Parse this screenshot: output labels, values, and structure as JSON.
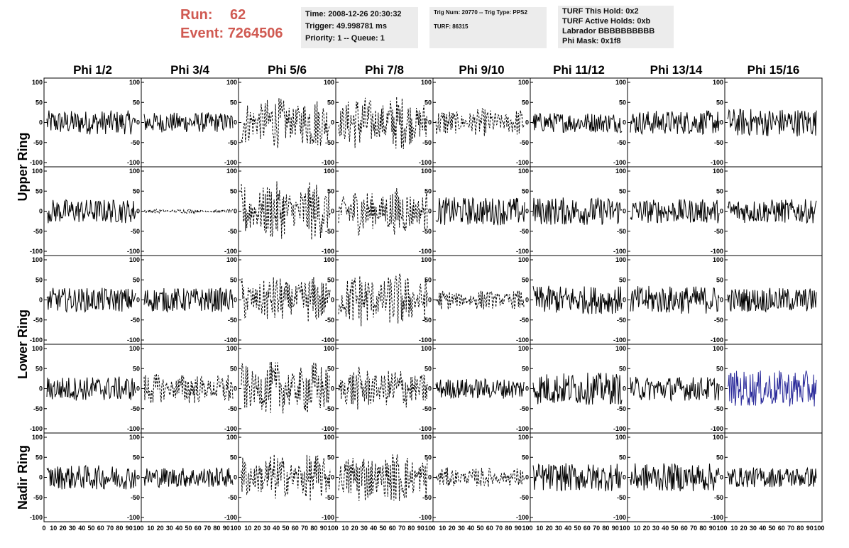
{
  "header": {
    "run_label": "Run:",
    "run_value": "62",
    "event_label": "Event:",
    "event_value": "7264506",
    "run_color": "#d05a52"
  },
  "info_boxes": {
    "time": "Time: 2008-12-26 20:30:32",
    "trigger": "Trigger: 49.998781 ms",
    "priority": "Priority: 1 -- Queue: 1",
    "trig_num": "Trig Num: 20770 -- Trig Type: PPS2",
    "turf": "TURF: 86315",
    "turf_hold": "TURF This Hold: 0x2",
    "turf_active": "TURF Active Holds: 0xb",
    "labrador": "Labrador BBBBBBBBBB",
    "phi_mask": "Phi Mask: 0x1f8"
  },
  "chart_data": {
    "type": "line",
    "description_rows": [
      "Upper Ring",
      "Upper Ring",
      "Lower Ring",
      "Lower Ring",
      "Nadir Ring"
    ],
    "column_titles": [
      "Phi 1/2",
      "Phi 3/4",
      "Phi 5/6",
      "Phi 7/8",
      "Phi 9/10",
      "Phi 11/12",
      "Phi 13/14",
      "Phi 15/16"
    ],
    "row_labels": [
      {
        "text": "Upper Ring",
        "rows": [
          0,
          1
        ]
      },
      {
        "text": "Lower Ring",
        "rows": [
          2,
          3
        ]
      },
      {
        "text": "Nadir Ring",
        "rows": [
          4
        ]
      }
    ],
    "xlim": [
      0,
      100
    ],
    "ylim": [
      -100,
      100
    ],
    "x_tick_labels": [
      "0",
      "10",
      "20",
      "30",
      "40",
      "50",
      "60",
      "70",
      "80",
      "90",
      "100"
    ],
    "y_tick_labels": [
      "-100",
      "-50",
      "0",
      "50",
      "100"
    ],
    "trace_amplitude": [
      [
        30,
        25,
        65,
        70,
        35,
        25,
        30,
        35
      ],
      [
        30,
        5,
        75,
        60,
        35,
        35,
        30,
        30
      ],
      [
        30,
        30,
        60,
        70,
        25,
        35,
        35,
        30
      ],
      [
        30,
        40,
        70,
        55,
        25,
        40,
        30,
        45
      ],
      [
        30,
        25,
        60,
        65,
        25,
        35,
        35,
        25
      ]
    ],
    "trace_style": [
      [
        "solid",
        "solid",
        "dashed",
        "dashed",
        "dashed",
        "solid",
        "solid",
        "solid"
      ],
      [
        "solid",
        "dashed",
        "dashed",
        "dashed",
        "solid",
        "solid",
        "solid",
        "solid"
      ],
      [
        "solid",
        "solid",
        "dashed",
        "dashed",
        "dashed",
        "solid",
        "solid",
        "solid"
      ],
      [
        "solid",
        "dashed",
        "dashed",
        "dashed",
        "solid",
        "solid",
        "solid",
        "solid"
      ],
      [
        "solid",
        "solid",
        "dashed",
        "dashed",
        "dashed",
        "solid",
        "solid",
        "solid"
      ]
    ],
    "highlight": {
      "row": 3,
      "col": 7,
      "color": "#2a2a9a"
    },
    "trace_color": "#000000"
  }
}
